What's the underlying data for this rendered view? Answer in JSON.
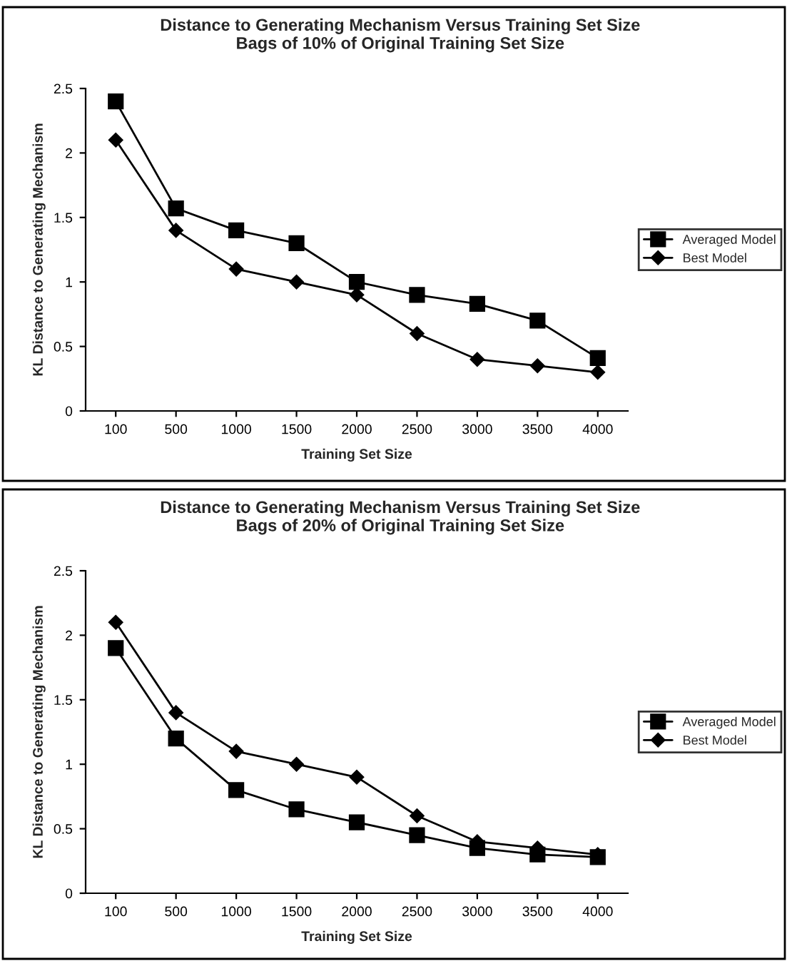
{
  "chart_data": [
    {
      "type": "line",
      "title": "Distance to Generating Mechanism Versus Training Set Size",
      "subtitle": "Bags of 10% of Original Training Set Size",
      "xlabel": "Training Set Size",
      "ylabel": "KL Distance to Generating Mechanism",
      "categories": [
        "100",
        "500",
        "1000",
        "1500",
        "2000",
        "2500",
        "3000",
        "3500",
        "4000"
      ],
      "series": [
        {
          "name": "Averaged Model",
          "color": "#000000",
          "marker": "square",
          "values": [
            2.4,
            1.57,
            1.4,
            1.3,
            1.0,
            0.9,
            0.83,
            0.7,
            0.41
          ]
        },
        {
          "name": "Best Model",
          "color": "#000000",
          "marker": "diamond",
          "values": [
            2.1,
            1.4,
            1.1,
            1.0,
            0.9,
            0.6,
            0.4,
            0.35,
            0.3
          ]
        }
      ],
      "ylim": [
        0,
        2.5
      ],
      "yticks": [
        0,
        0.5,
        1,
        1.5,
        2,
        2.5
      ],
      "grid": false,
      "legend": "right",
      "line_style": "solid"
    },
    {
      "type": "line",
      "title": "Distance to Generating Mechanism Versus Training Set Size",
      "subtitle": "Bags of 20% of Original Training Set Size",
      "xlabel": "Training Set Size",
      "ylabel": "KL Distance to Generating Mechanism",
      "categories": [
        "100",
        "500",
        "1000",
        "1500",
        "2000",
        "2500",
        "3000",
        "3500",
        "4000"
      ],
      "series": [
        {
          "name": "Averaged Model",
          "color": "#000000",
          "marker": "square",
          "values": [
            1.9,
            1.2,
            0.8,
            0.65,
            0.55,
            0.45,
            0.35,
            0.3,
            0.28
          ]
        },
        {
          "name": "Best Model",
          "color": "#000000",
          "marker": "diamond",
          "values": [
            2.1,
            1.4,
            1.1,
            1.0,
            0.9,
            0.6,
            0.4,
            0.35,
            0.3
          ]
        }
      ],
      "ylim": [
        0,
        2.5
      ],
      "yticks": [
        0,
        0.5,
        1,
        1.5,
        2,
        2.5
      ],
      "grid": false,
      "legend": "right",
      "line_style": "solid"
    }
  ]
}
